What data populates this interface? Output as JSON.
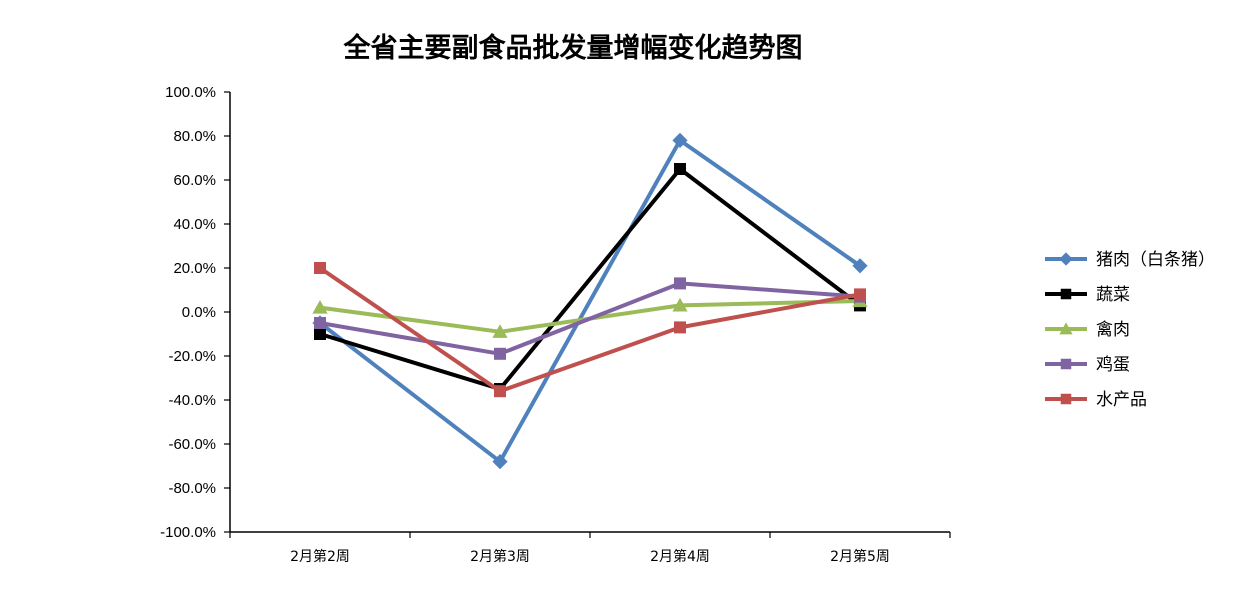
{
  "chart_data": {
    "type": "line",
    "title": "全省主要副食品批发量增幅变化趋势图",
    "categories": [
      "2月第2周",
      "2月第3周",
      "2月第4周",
      "2月第5周"
    ],
    "ylim": [
      -100,
      100
    ],
    "ytick_step": 20,
    "ytick_format": "percent_1dp",
    "grid": false,
    "legend_position": "right",
    "series": [
      {
        "name": "猪肉（白条猪）",
        "color": "#4F81BD",
        "marker": "diamond",
        "values": [
          -5,
          -68,
          78,
          21
        ]
      },
      {
        "name": "蔬菜",
        "color": "#000000",
        "marker": "square",
        "values": [
          -10,
          -35,
          65,
          3
        ]
      },
      {
        "name": "禽肉",
        "color": "#9BBB59",
        "marker": "triangle",
        "values": [
          2,
          -9,
          3,
          5
        ]
      },
      {
        "name": "鸡蛋",
        "color": "#8064A2",
        "marker": "square",
        "values": [
          -5,
          -19,
          13,
          7
        ]
      },
      {
        "name": "水产品",
        "color": "#C0504D",
        "marker": "square",
        "values": [
          20,
          -36,
          -7,
          8
        ]
      }
    ]
  }
}
